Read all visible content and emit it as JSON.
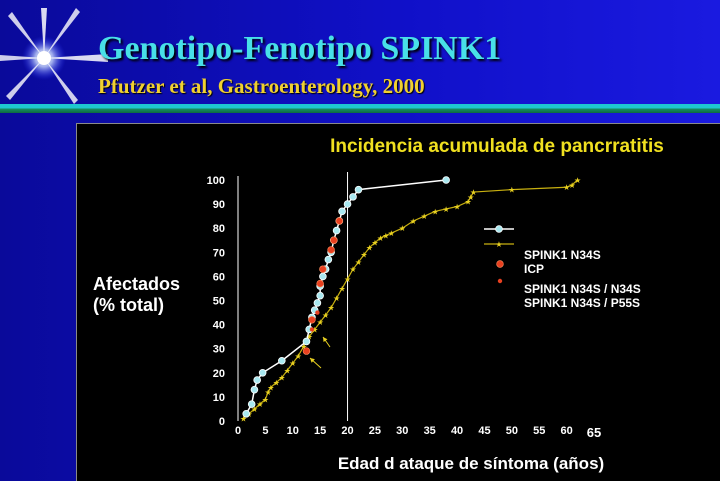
{
  "slide": {
    "title": "Genotipo-Fenotipo SPINK1",
    "subtitle": "Pfutzer et al, Gastroenterology, 2000"
  },
  "colors": {
    "background": "#1010c8",
    "title": "#48e0e8",
    "subtitle": "#f0d030",
    "chart_title": "#f0e020",
    "panel": "#000000",
    "spink1_n34s": "#a8e8f0",
    "icp": "#c8b010",
    "n34s_homozygous": "#e84020",
    "n34s_p55s": "#e84020"
  },
  "chart_data": {
    "type": "line",
    "title": "Incidencia acumulada de pancrratitis",
    "xlabel": "Edad d ataque de síntoma (años)",
    "ylabel": [
      "Afectados",
      "(% total)"
    ],
    "xlim": [
      0,
      65
    ],
    "ylim": [
      0,
      100
    ],
    "x_ticks": [
      "0",
      "5",
      "10",
      "15",
      "20",
      "25",
      "30",
      "35",
      "40",
      "45",
      "50",
      "55",
      "60",
      "65"
    ],
    "y_ticks": [
      "0",
      "10",
      "20",
      "30",
      "40",
      "50",
      "60",
      "70",
      "80",
      "90",
      "100"
    ],
    "grid": false,
    "reference_lines_x": [
      0,
      20
    ],
    "legend": {
      "position": "right",
      "entries": [
        "SPINK1 N34S",
        "ICP",
        "SPINK1 N34S / N34S",
        "SPINK1 N34S / P55S"
      ]
    },
    "series": [
      {
        "name": "SPINK1 N34S",
        "x": [
          1.5,
          2.5,
          3,
          3.5,
          4.5,
          8,
          12.5,
          13,
          13.5,
          14,
          14.5,
          15,
          15,
          15.5,
          16,
          16.5,
          17,
          17.5,
          18,
          18.5,
          19,
          20,
          21,
          22,
          38
        ],
        "y": [
          3,
          7,
          13,
          17,
          20,
          25,
          33,
          38,
          43,
          46,
          49,
          52,
          56,
          60,
          63,
          67,
          70,
          75,
          79,
          83,
          87,
          90,
          93,
          96,
          100
        ]
      },
      {
        "name": "ICP",
        "x": [
          1,
          2,
          3,
          4,
          5,
          5.5,
          6,
          7,
          8,
          9,
          10,
          11,
          12,
          13,
          14,
          15,
          16,
          17,
          18,
          19,
          20,
          21,
          22,
          23,
          24,
          25,
          26,
          27,
          28,
          30,
          32,
          34,
          36,
          38,
          40,
          42,
          42.5,
          43,
          50,
          60,
          61,
          62
        ],
        "y": [
          1,
          3,
          5,
          7,
          9,
          12,
          14,
          16,
          18,
          21,
          24,
          27,
          31,
          35,
          38,
          41,
          44,
          47,
          51,
          55,
          59,
          63,
          66,
          69,
          72,
          74,
          76,
          77,
          78,
          80,
          83,
          85,
          87,
          88,
          89,
          91,
          93,
          95,
          96,
          97,
          98,
          100
        ]
      },
      {
        "name": "SPINK1 N34S / N34S",
        "x": [
          12.5,
          13.5,
          15,
          15.5,
          17,
          17.5,
          18.5
        ],
        "y": [
          29,
          42,
          57,
          63,
          71,
          75,
          83
        ]
      },
      {
        "name": "SPINK1 N34S / P55S",
        "x": [
          13.5,
          14.5
        ],
        "y": [
          38,
          45
        ]
      }
    ],
    "annotations": [
      "arrow-to-N34S-P55S-upper",
      "arrow-to-N34S-P55S-lower"
    ]
  }
}
